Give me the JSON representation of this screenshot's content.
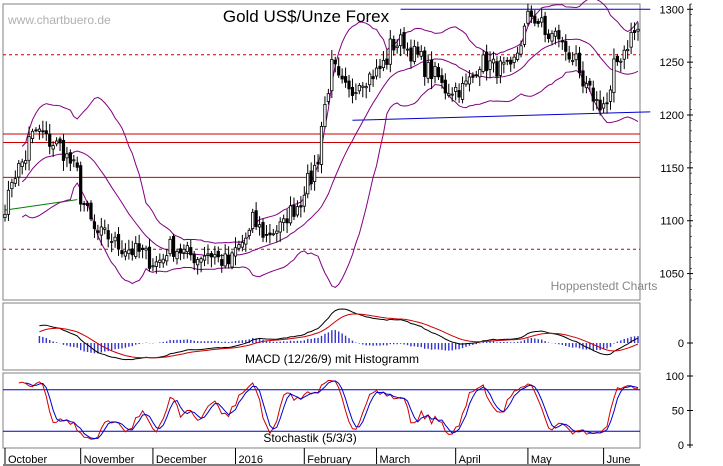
{
  "watermark": "www.chartbuero.de",
  "title": "Gold US$/Unze Forex",
  "credit": "Hoppenstedt Charts",
  "colors": {
    "candle": "#000000",
    "bollinger": "#800080",
    "resistance_red": "#cc0000",
    "trend_blue": "#0000cc",
    "trend_green": "#008000",
    "macd_line": "#000000",
    "signal_line": "#cc0000",
    "histogram": "#3333cc",
    "stoch_k": "#cc0000",
    "stoch_d": "#0000cc",
    "frame": "#808080"
  },
  "chart_data": [
    {
      "type": "candlestick",
      "title": "Gold US$/Unze Forex",
      "ylim": [
        1025,
        1305
      ],
      "y_ticks": [
        1050,
        1100,
        1150,
        1200,
        1250,
        1300
      ],
      "x_labels": [
        "October",
        "November",
        "December",
        "2016",
        "February",
        "March",
        "April",
        "May",
        "June"
      ],
      "close_anchors": [
        [
          "2015-10-01",
          1115
        ],
        [
          "2015-10-05",
          1140
        ],
        [
          "2015-10-09",
          1160
        ],
        [
          "2015-10-14",
          1185
        ],
        [
          "2015-10-20",
          1175
        ],
        [
          "2015-10-26",
          1165
        ],
        [
          "2015-10-30",
          1145
        ],
        [
          "2015-11-03",
          1115
        ],
        [
          "2015-11-06",
          1090
        ],
        [
          "2015-11-12",
          1085
        ],
        [
          "2015-11-18",
          1075
        ],
        [
          "2015-11-25",
          1070
        ],
        [
          "2015-12-02",
          1060
        ],
        [
          "2015-12-08",
          1075
        ],
        [
          "2015-12-14",
          1070
        ],
        [
          "2015-12-18",
          1065
        ],
        [
          "2015-12-23",
          1070
        ],
        [
          "2015-12-31",
          1060
        ],
        [
          "2016-01-05",
          1075
        ],
        [
          "2016-01-11",
          1100
        ],
        [
          "2016-01-15",
          1085
        ],
        [
          "2016-01-22",
          1095
        ],
        [
          "2016-01-28",
          1115
        ],
        [
          "2016-02-03",
          1140
        ],
        [
          "2016-02-08",
          1190
        ],
        [
          "2016-02-11",
          1245
        ],
        [
          "2016-02-18",
          1220
        ],
        [
          "2016-02-24",
          1235
        ],
        [
          "2016-03-01",
          1240
        ],
        [
          "2016-03-07",
          1265
        ],
        [
          "2016-03-11",
          1270
        ],
        [
          "2016-03-17",
          1255
        ],
        [
          "2016-03-23",
          1240
        ],
        [
          "2016-03-29",
          1225
        ],
        [
          "2016-04-05",
          1225
        ],
        [
          "2016-04-12",
          1250
        ],
        [
          "2016-04-19",
          1245
        ],
        [
          "2016-04-25",
          1240
        ],
        [
          "2016-04-29",
          1280
        ],
        [
          "2016-05-03",
          1295
        ],
        [
          "2016-05-09",
          1275
        ],
        [
          "2016-05-13",
          1275
        ],
        [
          "2016-05-19",
          1255
        ],
        [
          "2016-05-24",
          1225
        ],
        [
          "2016-05-30",
          1212
        ],
        [
          "2016-06-02",
          1210
        ],
        [
          "2016-06-06",
          1245
        ],
        [
          "2016-06-10",
          1268
        ],
        [
          "2016-06-15",
          1280
        ]
      ],
      "horizontal_lines_red_solid": [
        1182,
        1174,
        1141
      ],
      "horizontal_lines_red_dashed": [
        1257,
        1073
      ],
      "trend_lines_blue": [
        {
          "from": [
            "2016-03-10",
            1300
          ],
          "to": [
            "2016-06-20",
            1300
          ]
        },
        {
          "from": [
            "2016-02-20",
            1195
          ],
          "to": [
            "2016-06-20",
            1203
          ]
        }
      ],
      "trend_lines_green": [
        {
          "from": [
            "2015-10-01",
            1110
          ],
          "to": [
            "2015-11-01",
            1120
          ]
        }
      ],
      "bollinger_period": 20
    },
    {
      "type": "line",
      "title": "MACD (12/26/9) mit Histogramm",
      "y_ticks": [
        0
      ],
      "series": [
        {
          "name": "MACD"
        },
        {
          "name": "Signal"
        },
        {
          "name": "Histogramm"
        }
      ]
    },
    {
      "type": "line",
      "title": "Stochastik (5/3/3)",
      "ylim": [
        0,
        100
      ],
      "y_ticks": [
        0,
        50,
        100
      ],
      "reference_lines": [
        80,
        20
      ],
      "series": [
        {
          "name": "%K"
        },
        {
          "name": "%D"
        }
      ]
    }
  ]
}
